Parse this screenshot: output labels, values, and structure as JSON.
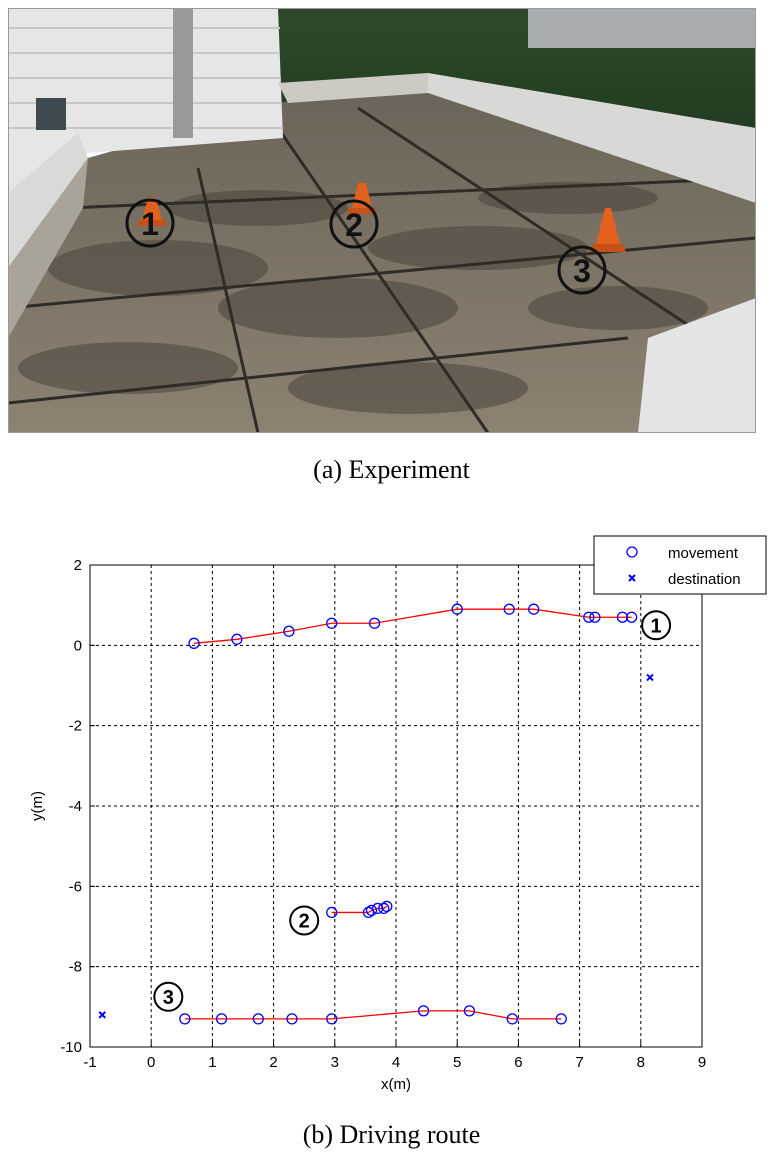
{
  "panels": {
    "a_caption": "(a)  Experiment",
    "b_caption": "(b)  Driving  route"
  },
  "photo": {
    "markers": [
      "①",
      "②",
      "③"
    ]
  },
  "chart_data": {
    "type": "line",
    "xlabel": "x(m)",
    "ylabel": "y(m)",
    "xlim": [
      -1,
      9
    ],
    "ylim": [
      -10,
      2
    ],
    "xticks": [
      -1,
      0,
      1,
      2,
      3,
      4,
      5,
      6,
      7,
      8,
      9
    ],
    "yticks": [
      2,
      0,
      -2,
      -4,
      -6,
      -8,
      -10
    ],
    "grid": true,
    "grid_style": "dashed",
    "legend_position": "top-right",
    "legend": [
      {
        "label": "movement",
        "marker": "o",
        "color": "#0000ff"
      },
      {
        "label": "destination",
        "marker": "x",
        "color": "#0000ff"
      }
    ],
    "line_color": "#ff0000",
    "series": [
      {
        "label": "①",
        "x": [
          0.7,
          1.4,
          2.25,
          2.95,
          3.65,
          5.0,
          5.85,
          6.25,
          7.15,
          7.25,
          7.7,
          7.85
        ],
        "y": [
          0.05,
          0.15,
          0.35,
          0.55,
          0.55,
          0.9,
          0.9,
          0.9,
          0.7,
          0.7,
          0.7,
          0.7
        ]
      },
      {
        "label": "②",
        "x": [
          2.95,
          3.55,
          3.6,
          3.7,
          3.8,
          3.85
        ],
        "y": [
          -6.65,
          -6.65,
          -6.6,
          -6.55,
          -6.55,
          -6.5
        ]
      },
      {
        "label": "③",
        "x": [
          0.55,
          1.15,
          1.75,
          2.3,
          2.95,
          4.45,
          5.2,
          5.9,
          6.7
        ],
        "y": [
          -9.3,
          -9.3,
          -9.3,
          -9.3,
          -9.3,
          -9.1,
          -9.1,
          -9.3,
          -9.3
        ]
      }
    ],
    "destinations": [
      {
        "x": 8.15,
        "y": -0.8
      },
      {
        "x": -0.8,
        "y": -9.2
      }
    ]
  }
}
